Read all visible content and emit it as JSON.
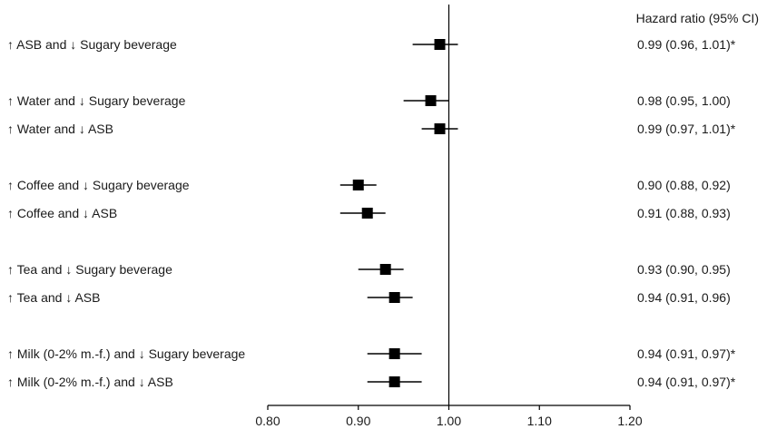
{
  "chart_data": {
    "type": "forest",
    "column_header": "Hazard ratio (95% CI)",
    "reference_line": 1.0,
    "xlim": [
      0.8,
      1.2
    ],
    "x_ticks": [
      0.8,
      0.9,
      1.0,
      1.1,
      1.2
    ],
    "x_tick_labels": [
      "0.80",
      "0.90",
      "1.00",
      "1.10",
      "1.20"
    ],
    "groups": [
      {
        "rows": [
          {
            "label": "↑ ASB and ↓ Sugary beverage",
            "hr": 0.99,
            "lower": 0.96,
            "upper": 1.01,
            "text": "0.99 (0.96, 1.01)*"
          }
        ]
      },
      {
        "rows": [
          {
            "label": "↑ Water and ↓ Sugary beverage",
            "hr": 0.98,
            "lower": 0.95,
            "upper": 1.0,
            "text": "0.98 (0.95, 1.00)"
          },
          {
            "label": "↑ Water and ↓ ASB",
            "hr": 0.99,
            "lower": 0.97,
            "upper": 1.01,
            "text": "0.99 (0.97, 1.01)*"
          }
        ]
      },
      {
        "rows": [
          {
            "label": "↑ Coffee and ↓ Sugary beverage",
            "hr": 0.9,
            "lower": 0.88,
            "upper": 0.92,
            "text": "0.90 (0.88, 0.92)"
          },
          {
            "label": "↑ Coffee and ↓ ASB",
            "hr": 0.91,
            "lower": 0.88,
            "upper": 0.93,
            "text": "0.91 (0.88, 0.93)"
          }
        ]
      },
      {
        "rows": [
          {
            "label": "↑ Tea and ↓ Sugary beverage",
            "hr": 0.93,
            "lower": 0.9,
            "upper": 0.95,
            "text": "0.93 (0.90, 0.95)"
          },
          {
            "label": "↑ Tea and ↓ ASB",
            "hr": 0.94,
            "lower": 0.91,
            "upper": 0.96,
            "text": "0.94 (0.91, 0.96)"
          }
        ]
      },
      {
        "rows": [
          {
            "label": "↑ Milk (0-2% m.-f.) and ↓ Sugary beverage",
            "hr": 0.94,
            "lower": 0.91,
            "upper": 0.97,
            "text": "0.94 (0.91, 0.97)*"
          },
          {
            "label": "↑ Milk (0-2% m.-f.) and ↓ ASB",
            "hr": 0.94,
            "lower": 0.91,
            "upper": 0.97,
            "text": "0.94 (0.91, 0.97)*"
          }
        ]
      }
    ],
    "colors": {
      "marker": "#000000",
      "line": "#000000",
      "text": "#1a1a1a"
    }
  }
}
